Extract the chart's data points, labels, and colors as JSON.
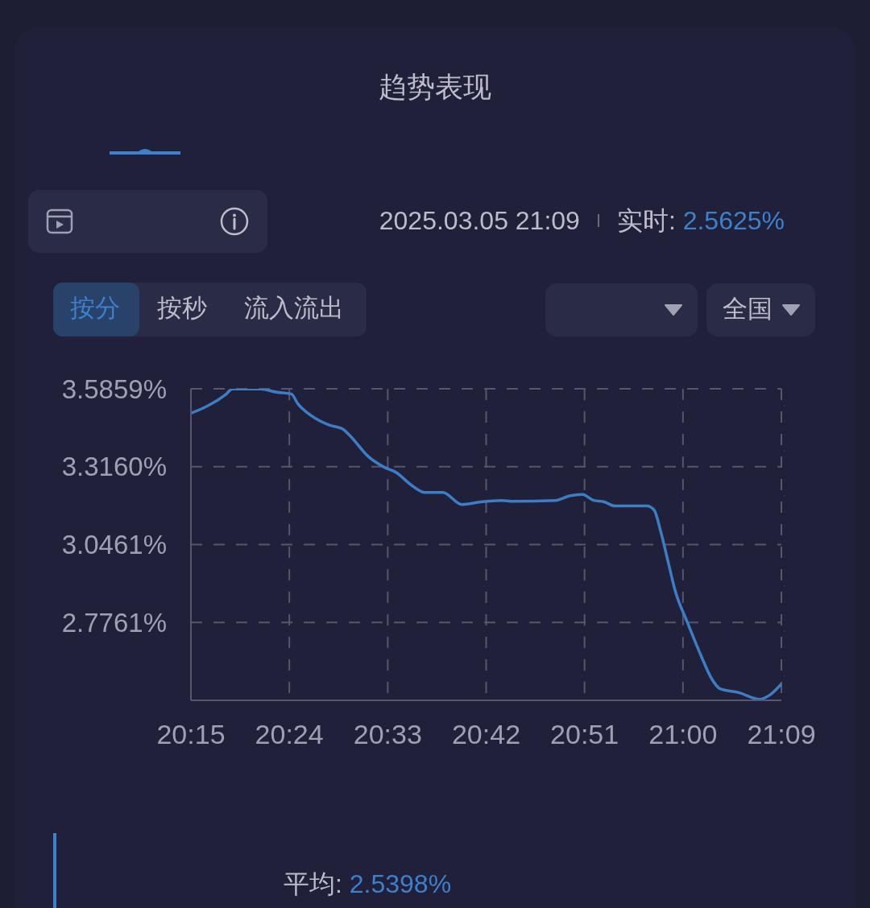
{
  "chart_data": {
    "type": "line",
    "title": "趋势表现",
    "annotations": [
      "2025.03.05 21:09",
      "实时: 2.5625%",
      "按分",
      "按秒",
      "流入流出",
      "全国",
      "平均: 2.5398%"
    ],
    "x": [
      20.25,
      20.303,
      20.313,
      20.356,
      20.381,
      20.403,
      20.413,
      20.434,
      20.462,
      20.481,
      20.491,
      20.52,
      20.544,
      20.563,
      20.585,
      20.606,
      20.634,
      20.663,
      20.692,
      20.724,
      20.741,
      20.806,
      20.827,
      20.847,
      20.864,
      20.88,
      20.896,
      20.945,
      20.956,
      20.966,
      20.978,
      20.988,
      21.007,
      21.027,
      21.044,
      21.056,
      21.085,
      21.117,
      21.132,
      21.15
    ],
    "values": [
      3.501,
      3.566,
      3.585,
      3.585,
      3.574,
      3.568,
      3.534,
      3.492,
      3.459,
      3.447,
      3.427,
      3.352,
      3.315,
      3.296,
      3.254,
      3.227,
      3.227,
      3.185,
      3.194,
      3.199,
      3.196,
      3.199,
      3.215,
      3.22,
      3.199,
      3.194,
      3.18,
      3.18,
      3.166,
      3.092,
      2.98,
      2.887,
      2.775,
      2.664,
      2.58,
      2.547,
      2.533,
      2.51,
      2.524,
      2.563
    ],
    "color": "#3b7ec6",
    "xlim": [
      20.25,
      21.15
    ],
    "xticks": [
      {
        "value": 20.25,
        "label": "20:15"
      },
      {
        "value": 20.4,
        "label": "20:24"
      },
      {
        "value": 20.55,
        "label": "20:33"
      },
      {
        "value": 20.7,
        "label": "20:42"
      },
      {
        "value": 20.85,
        "label": "20:51"
      },
      {
        "value": 21,
        "label": "21:00"
      },
      {
        "value": 21.15,
        "label": "21:09"
      }
    ],
    "ylim": [
      2.5062,
      3.5859
    ],
    "yticks": [
      {
        "value": 3.5859,
        "label": "3.5859%"
      },
      {
        "value": 3.316,
        "label": "3.3160%"
      },
      {
        "value": 3.0461,
        "label": "3.0461%"
      },
      {
        "value": 2.7761,
        "label": "2.7761%"
      }
    ],
    "grid": true
  }
}
